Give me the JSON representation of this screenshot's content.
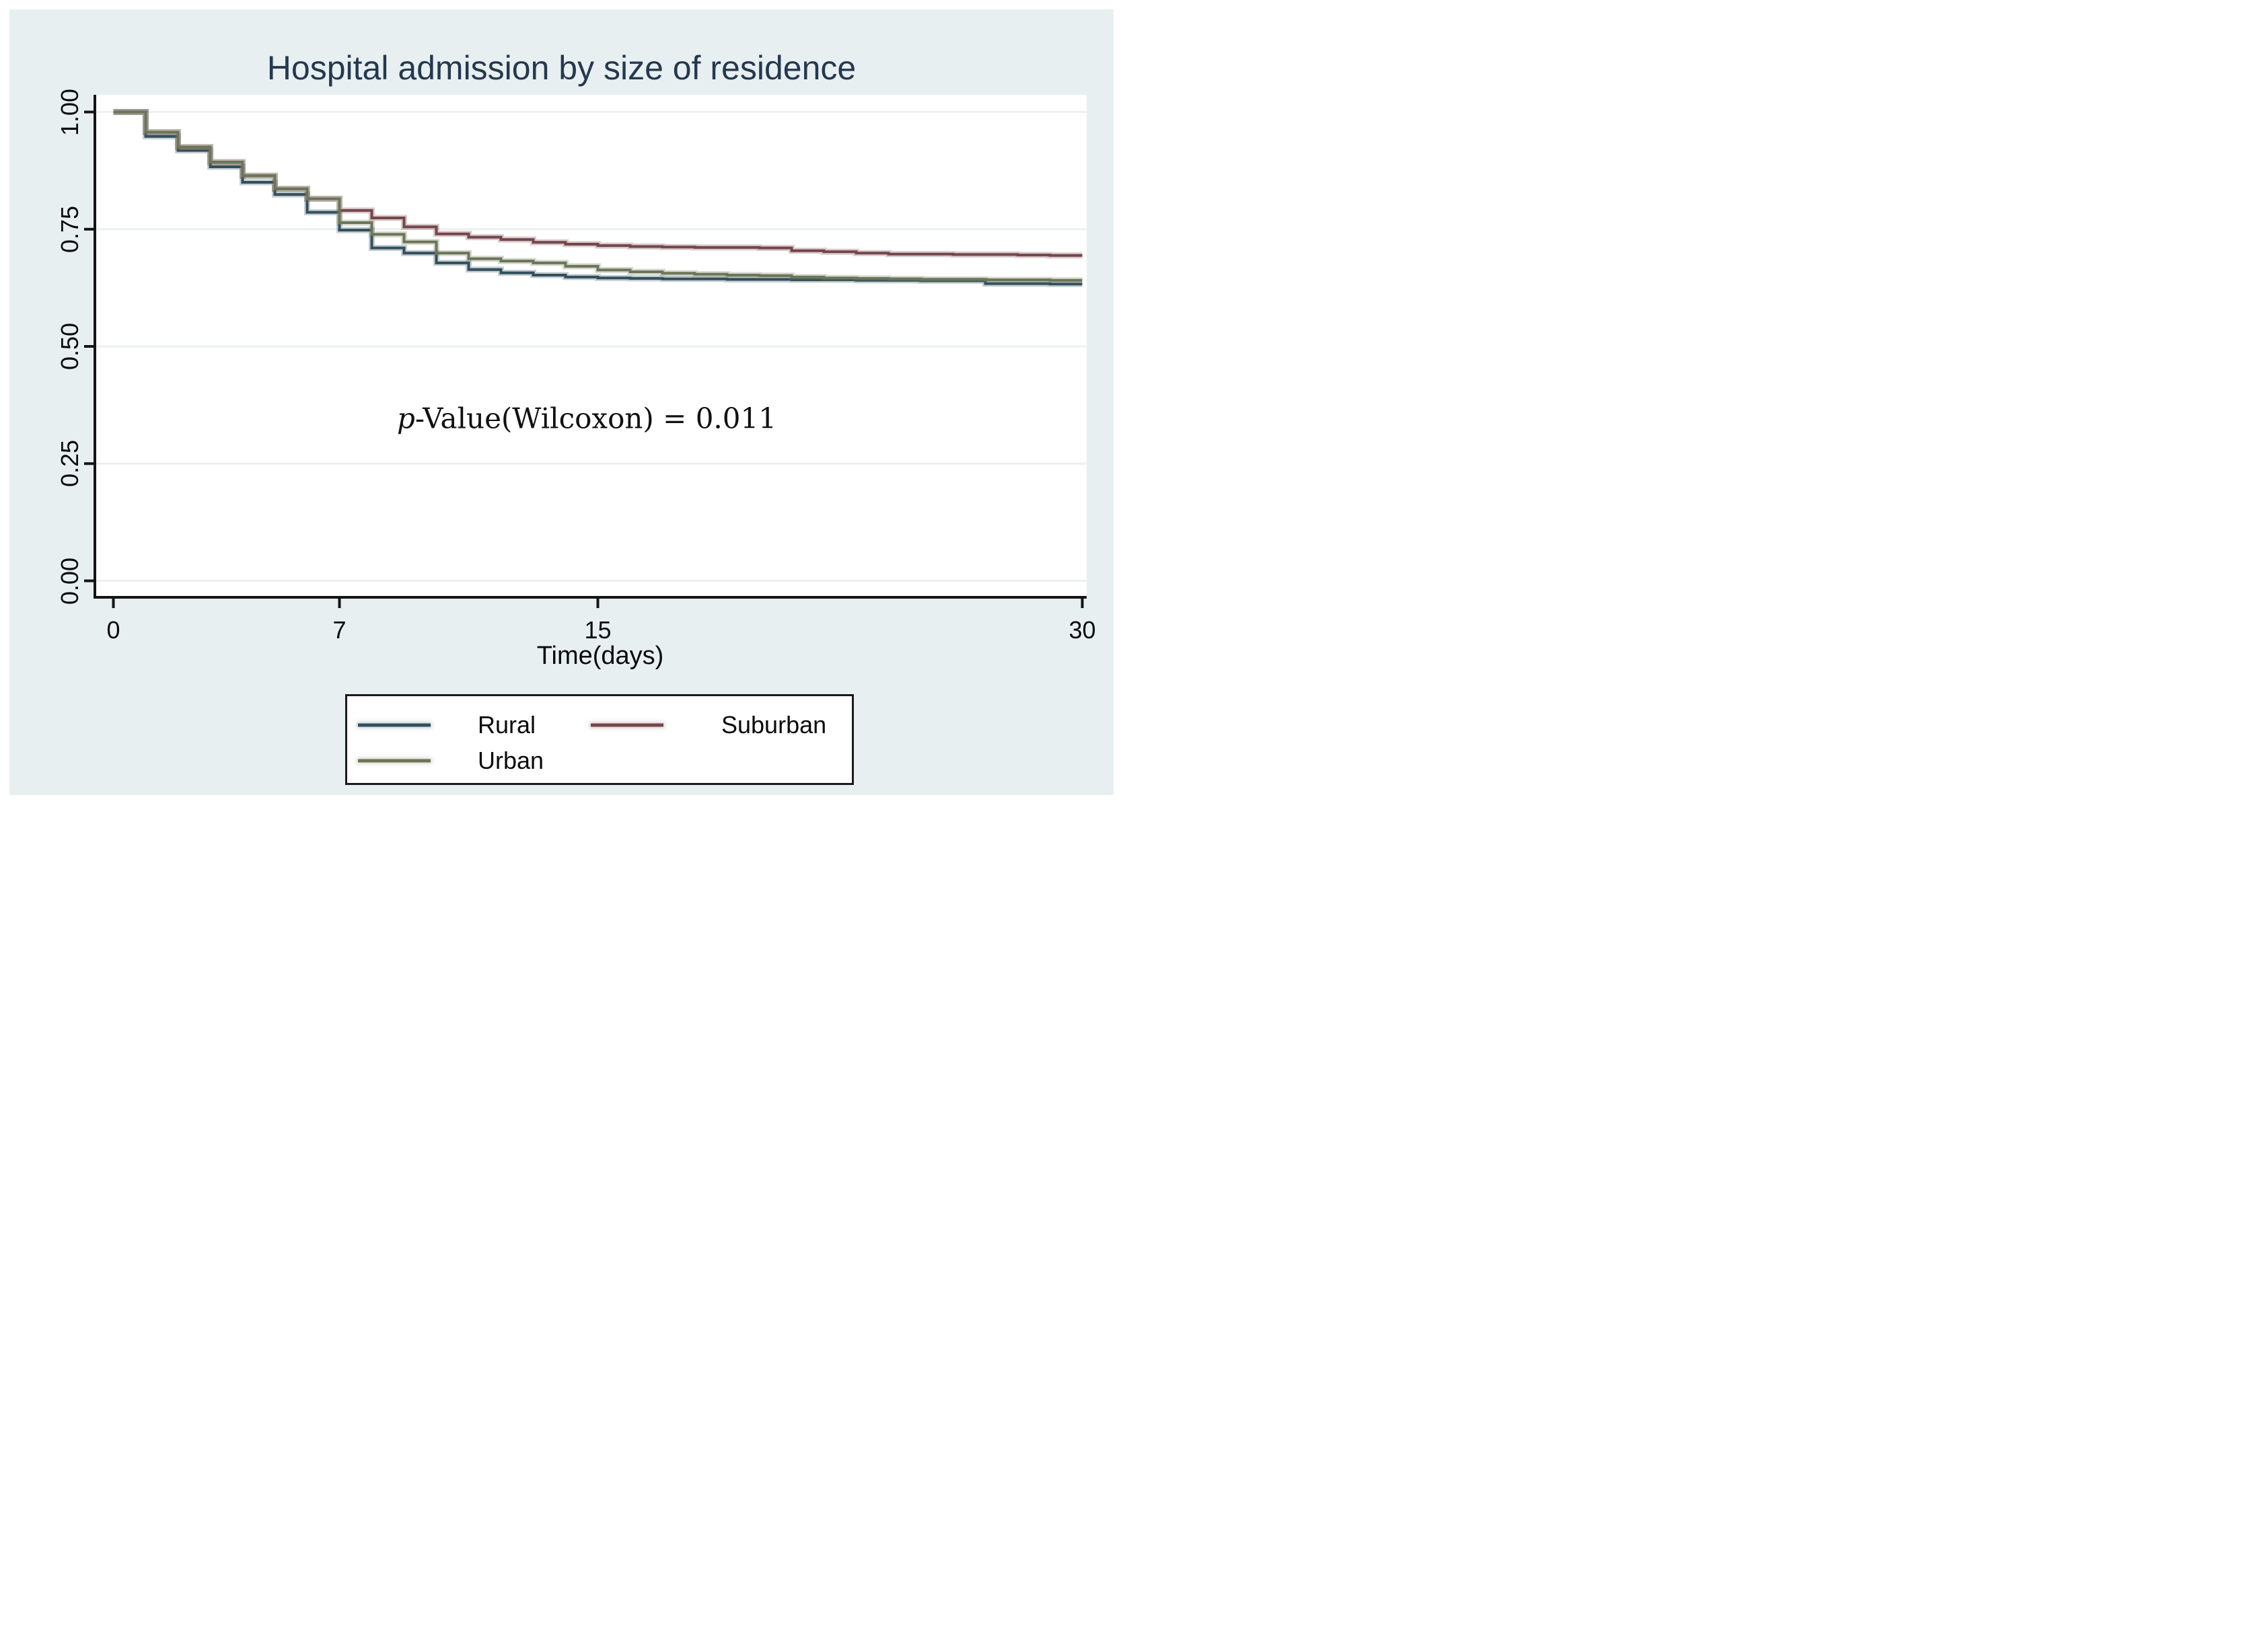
{
  "window": {
    "background_color": "#ffffff",
    "canvas_color": "#e8eff1"
  },
  "chart_data": {
    "type": "line",
    "subtype": "kaplan-meier-step-survival",
    "title": "Hospital admission by size of residence",
    "title_color": "#24394f",
    "xlabel": "Time(days)",
    "ylabel": "",
    "xlim": [
      0,
      30
    ],
    "ylim": [
      0.0,
      1.0
    ],
    "grid": "horizontal",
    "grid_color": "#edf0ee",
    "plot_background": "#ffffff",
    "axis_color": "#141414",
    "x_days": [
      0,
      1,
      2,
      3,
      4,
      5,
      6,
      7,
      8,
      9,
      10,
      11,
      12,
      13,
      14,
      15,
      16,
      17,
      18,
      19,
      20,
      21,
      22,
      23,
      24,
      25,
      26,
      27,
      28,
      29,
      30
    ],
    "x_ticks": [
      {
        "label": "0",
        "day": 0
      },
      {
        "label": "7",
        "day": 7
      },
      {
        "label": "15",
        "day": 15
      },
      {
        "label": "30",
        "day": 30
      }
    ],
    "y_ticks": [
      {
        "label": "1.00",
        "value": 1.0
      },
      {
        "label": "0.75",
        "value": 0.75
      },
      {
        "label": "0.50",
        "value": 0.5
      },
      {
        "label": "0.25",
        "value": 0.25
      },
      {
        "label": "0.00",
        "value": 0.0
      }
    ],
    "series": [
      {
        "name": "Rural",
        "color": "#31505c",
        "values": [
          1.0,
          0.948,
          0.918,
          0.883,
          0.85,
          0.824,
          0.786,
          0.748,
          0.71,
          0.699,
          0.678,
          0.664,
          0.657,
          0.652,
          0.648,
          0.646,
          0.645,
          0.644,
          0.644,
          0.643,
          0.643,
          0.642,
          0.642,
          0.641,
          0.641,
          0.64,
          0.64,
          0.634,
          0.634,
          0.633,
          0.633
        ]
      },
      {
        "name": "Suburban",
        "color": "#75464b",
        "values": [
          1.0,
          0.957,
          0.925,
          0.893,
          0.864,
          0.836,
          0.815,
          0.79,
          0.774,
          0.755,
          0.74,
          0.733,
          0.728,
          0.722,
          0.718,
          0.715,
          0.713,
          0.712,
          0.711,
          0.711,
          0.71,
          0.704,
          0.702,
          0.699,
          0.697,
          0.697,
          0.696,
          0.696,
          0.695,
          0.694,
          0.694
        ]
      },
      {
        "name": "Urban",
        "color": "#6c7557",
        "values": [
          1.0,
          0.957,
          0.925,
          0.893,
          0.864,
          0.836,
          0.815,
          0.764,
          0.739,
          0.723,
          0.699,
          0.687,
          0.682,
          0.678,
          0.671,
          0.663,
          0.659,
          0.656,
          0.654,
          0.652,
          0.651,
          0.648,
          0.646,
          0.645,
          0.644,
          0.643,
          0.643,
          0.642,
          0.642,
          0.641,
          0.641
        ]
      }
    ],
    "annotation": "p-Value(Wilcoxon) = 0.011",
    "annotation_p": "p",
    "annotation_rest": "-Value(Wilcoxon) = 0.011",
    "legend_position": "bottom",
    "legend": {
      "row1": [
        "Rural",
        "Suburban"
      ],
      "row2": [
        "Urban"
      ]
    }
  },
  "layout_text": {
    "title": "Hospital admission by size of residence",
    "x_axis_title": "Time(days)",
    "legend_rural": "Rural",
    "legend_suburban": "Suburban",
    "legend_urban": "Urban"
  }
}
